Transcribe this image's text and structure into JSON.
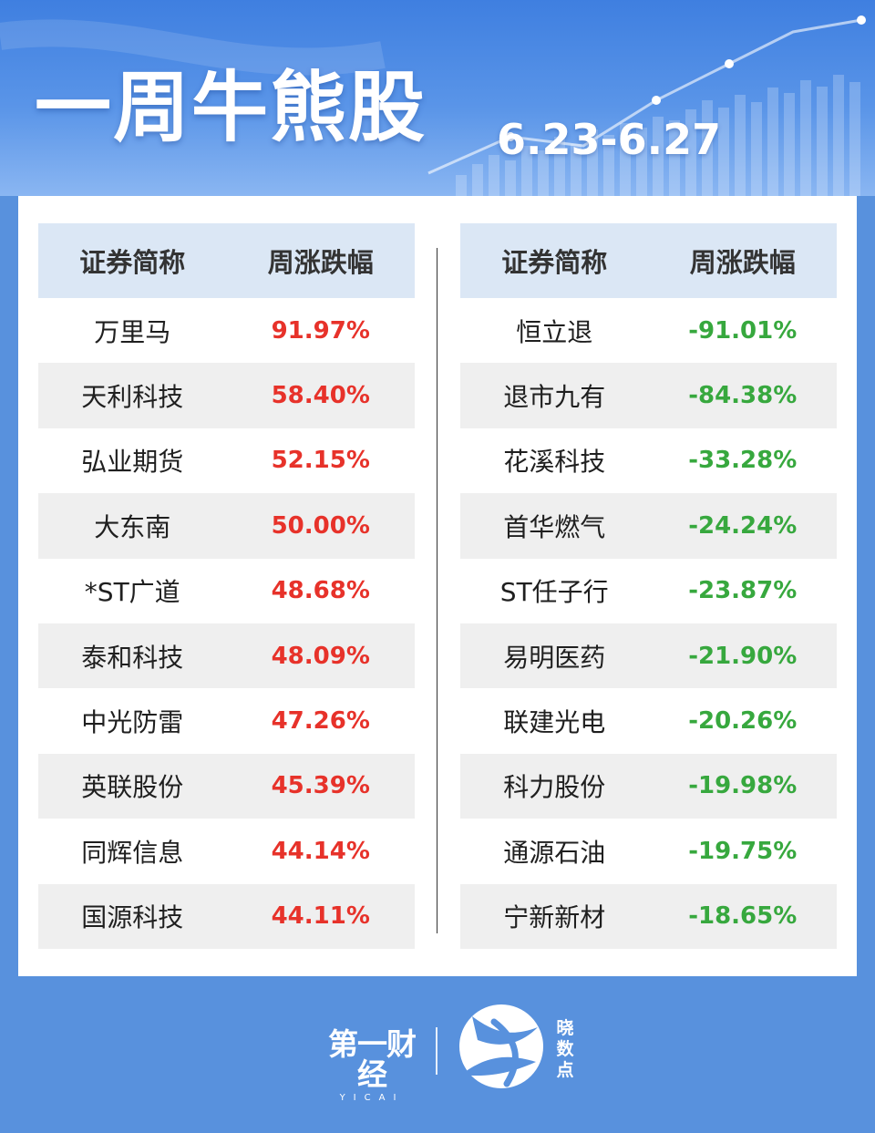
{
  "header": {
    "title": "一周牛熊股",
    "date": "6.23-6.27"
  },
  "gainers": {
    "headers": [
      "证券简称",
      "周涨跌幅"
    ],
    "rows": [
      {
        "name": "万里马",
        "change": "91.97%"
      },
      {
        "name": "天利科技",
        "change": "58.40%"
      },
      {
        "name": "弘业期货",
        "change": "52.15%"
      },
      {
        "name": "大东南",
        "change": "50.00%"
      },
      {
        "name": "*ST广道",
        "change": "48.68%"
      },
      {
        "name": "泰和科技",
        "change": "48.09%"
      },
      {
        "name": "中光防雷",
        "change": "47.26%"
      },
      {
        "name": "英联股份",
        "change": "45.39%"
      },
      {
        "name": "同辉信息",
        "change": "44.14%"
      },
      {
        "name": "国源科技",
        "change": "44.11%"
      }
    ]
  },
  "losers": {
    "headers": [
      "证券简称",
      "周涨跌幅"
    ],
    "rows": [
      {
        "name": "恒立退",
        "change": "-91.01%"
      },
      {
        "name": "退市九有",
        "change": "-84.38%"
      },
      {
        "name": "花溪科技",
        "change": "-33.28%"
      },
      {
        "name": "首华燃气",
        "change": "-24.24%"
      },
      {
        "name": "ST任子行",
        "change": "-23.87%"
      },
      {
        "name": "易明医药",
        "change": "-21.90%"
      },
      {
        "name": "联建光电",
        "change": "-20.26%"
      },
      {
        "name": "科力股份",
        "change": "-19.98%"
      },
      {
        "name": "通源石油",
        "change": "-19.75%"
      },
      {
        "name": "宁新新材",
        "change": "-18.65%"
      }
    ]
  },
  "footer": {
    "brand_main": "第一财经",
    "brand_sub": "YICAI",
    "logo_icon": "xiaoshudian-logo-icon",
    "brand_side": [
      "晓",
      "数",
      "点"
    ]
  },
  "colors": {
    "background": "#5891dd",
    "header_row": "#dbe7f5",
    "stripe": "#efefef",
    "gain": "#e7322a",
    "loss": "#37a83e"
  }
}
